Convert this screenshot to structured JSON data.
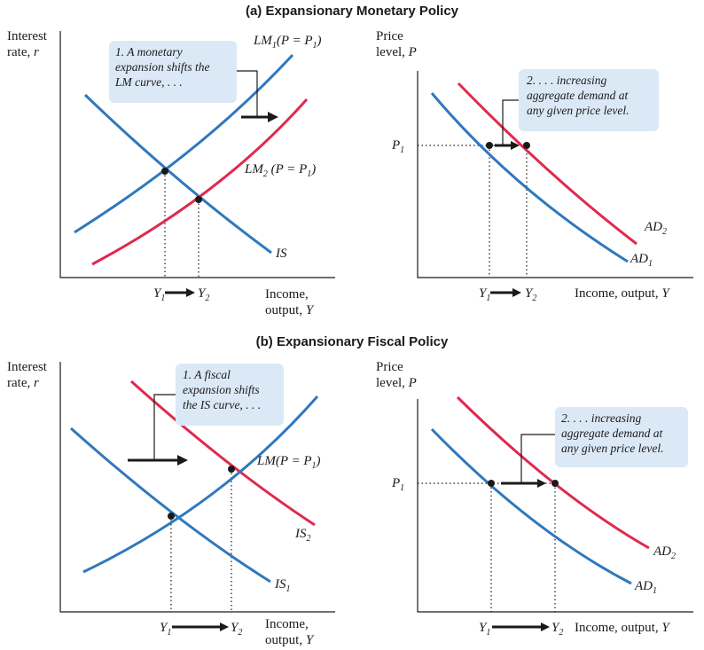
{
  "panel_a": {
    "title": "(a) Expansionary Monetary Policy",
    "left": {
      "y_axis_label_1": "Interest",
      "y_axis_label_2": "rate, ",
      "y_axis_var": "r",
      "x_axis_label_1": "Income,",
      "x_axis_label_2": "output, ",
      "x_axis_var": "Y",
      "lm1_label": "LM",
      "lm1_sub": "1",
      "lm1_cond": "(P = P",
      "lm1_cond_sub": "1",
      "lm1_close": ")",
      "lm2_label": "LM",
      "lm2_sub": "2",
      "lm2_cond": " (P = P",
      "lm2_cond_sub": "1",
      "lm2_close": ")",
      "is_label": "IS",
      "y1_label": "Y",
      "y1_sub": "1",
      "y2_label": "Y",
      "y2_sub": "2",
      "note_line1": "1. A monetary",
      "note_line2": "expansion shifts the",
      "note_line3": "LM curve, . . ."
    },
    "right": {
      "y_axis_label_1": "Price",
      "y_axis_label_2": "level, ",
      "y_axis_var": "P",
      "x_axis_label": "Income, output, ",
      "x_axis_var": "Y",
      "p1_label": "P",
      "p1_sub": "1",
      "ad1_label": "AD",
      "ad1_sub": "1",
      "ad2_label": "AD",
      "ad2_sub": "2",
      "y1_label": "Y",
      "y1_sub": "1",
      "y2_label": "Y",
      "y2_sub": "2",
      "note_line1": "2. . . . increasing",
      "note_line2": "aggregate demand at",
      "note_line3": "any given price level."
    }
  },
  "panel_b": {
    "title": "(b) Expansionary Fiscal Policy",
    "left": {
      "y_axis_label_1": "Interest",
      "y_axis_label_2": "rate, ",
      "y_axis_var": "r",
      "x_axis_label_1": "Income,",
      "x_axis_label_2": "output, ",
      "x_axis_var": "Y",
      "lm_label": "LM",
      "lm_cond": "(P = P",
      "lm_cond_sub": "1",
      "lm_close": ")",
      "is1_label": "IS",
      "is1_sub": "1",
      "is2_label": "IS",
      "is2_sub": "2",
      "y1_label": "Y",
      "y1_sub": "1",
      "y2_label": "Y",
      "y2_sub": "2",
      "note_line1": "1. A fiscal",
      "note_line2": "expansion shifts",
      "note_line3": "the IS curve, . . ."
    },
    "right": {
      "y_axis_label_1": "Price",
      "y_axis_label_2": "level, ",
      "y_axis_var": "P",
      "x_axis_label": "Income, output, ",
      "x_axis_var": "Y",
      "p1_label": "P",
      "p1_sub": "1",
      "ad1_label": "AD",
      "ad1_sub": "1",
      "ad2_label": "AD",
      "ad2_sub": "2",
      "y1_label": "Y",
      "y1_sub": "1",
      "y2_label": "Y",
      "y2_sub": "2",
      "note_line1": "2. . . . increasing",
      "note_line2": "aggregate demand at",
      "note_line3": "any given price level."
    }
  },
  "colors": {
    "blue_curve": "#2f78bd",
    "red_curve": "#e0294f",
    "note_box": "#dbe9f6"
  }
}
